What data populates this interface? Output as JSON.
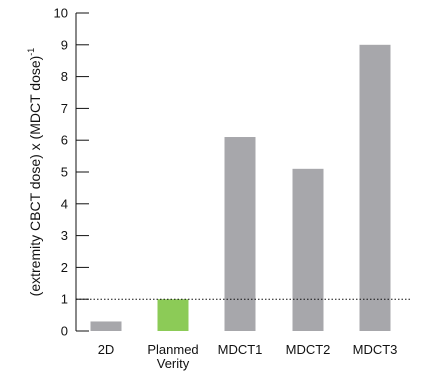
{
  "chart_data": {
    "type": "bar",
    "categories": [
      "2D",
      "Planmed Verity",
      "MDCT1",
      "MDCT2",
      "MDCT3"
    ],
    "category_lines": [
      [
        "2D"
      ],
      [
        "Planmed",
        "Verity"
      ],
      [
        "MDCT1"
      ],
      [
        "MDCT2"
      ],
      [
        "MDCT3"
      ]
    ],
    "values": [
      0.3,
      1.0,
      6.1,
      5.1,
      9.0
    ],
    "bar_colors": [
      "#a7a7ab",
      "#8ccb57",
      "#a7a7ab",
      "#a7a7ab",
      "#a7a7ab"
    ],
    "title": "",
    "xlabel": "",
    "ylabel": "(extremity CBCT dose) x (MDCT dose)",
    "ylabel_superscript": "-1",
    "ylim": [
      0,
      10
    ],
    "yticks": [
      0,
      1,
      2,
      3,
      4,
      5,
      6,
      7,
      8,
      9,
      10
    ],
    "reference_line": {
      "y": 1,
      "style": "dotted"
    },
    "grid": false,
    "legend": "none"
  }
}
